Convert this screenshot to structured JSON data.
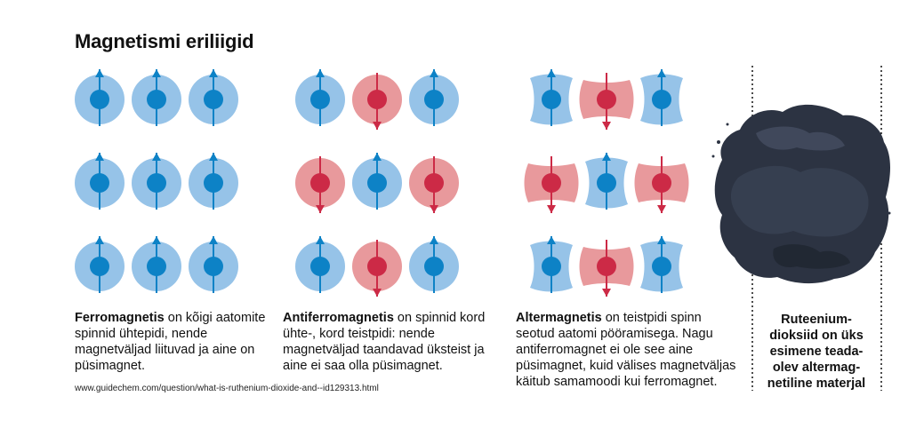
{
  "title": "Magnetismi eriliigid",
  "colors": {
    "up_outer": "#96c3e8",
    "up_core": "#0d82c6",
    "down_outer": "#e8999c",
    "down_core": "#cc2a46",
    "powder": "#2b3240"
  },
  "captions": {
    "ferro": {
      "term": "Ferromagnetis",
      "text": " on kõigi aatomite spinnid ühtepidi, nende magnetväljad liituvad ja aine on püsimagnet."
    },
    "antiferro": {
      "term": "Antiferromagnetis",
      "text": " on spinnid kord ühte-, kord teistpidi: nende magnetväljad taandavad üksteist ja aine ei saa olla püsimagnet."
    },
    "alter": {
      "term": "Altermagnetis",
      "text": " on teistpidi spinn seotud aatomi pööramisega. Nagu antiferromagnet ei ole see aine püsimagnet, kuid välises magnetväljas käitub samamoodi kui ferromagnet."
    }
  },
  "side_caption": [
    "Ruteenium-",
    "dioksiid on üks",
    "esimene teada-",
    "olev alterma­g-",
    "netiline materjal"
  ],
  "source": "www.guidechem.com/question/what-is-ruthenium-dioxide-and--id129313.html",
  "grids": {
    "ferro": [
      [
        "up",
        "up",
        "up"
      ],
      [
        "up",
        "up",
        "up"
      ],
      [
        "up",
        "up",
        "up"
      ]
    ],
    "antiferro": [
      [
        "up",
        "down",
        "up"
      ],
      [
        "down",
        "up",
        "down"
      ],
      [
        "up",
        "down",
        "up"
      ]
    ],
    "alter": [
      [
        "up-v",
        "down-h",
        "up-v"
      ],
      [
        "down-h",
        "up-v",
        "down-h"
      ],
      [
        "up-v",
        "down-h",
        "up-v"
      ]
    ]
  }
}
